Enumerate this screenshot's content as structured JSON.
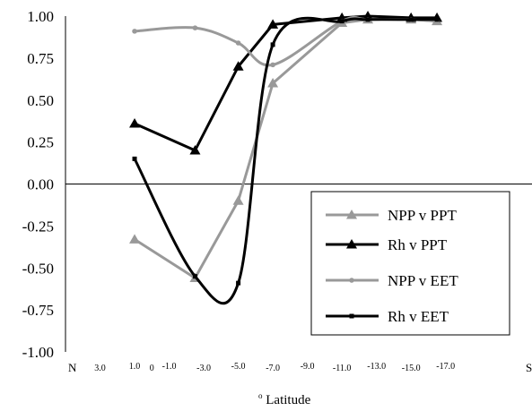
{
  "chart_data": {
    "type": "line",
    "title": "",
    "ylabel": "",
    "xlabel": {
      "superscript": "o",
      "text": " Latitude"
    },
    "ylim": [
      -1.0,
      1.0
    ],
    "y_ticks": [
      "1.00",
      "0.75",
      "0.50",
      "0.25",
      "0.00",
      "-0.25",
      "-0.50",
      "-0.75",
      "-1.00"
    ],
    "x_ticks": [
      "3.0",
      "1.0",
      "0",
      "-1.0",
      "-3.0",
      "-5.0",
      "-7.0",
      "-9.0",
      "-11.0",
      "-13.0",
      "-15.0",
      "-17.0"
    ],
    "x_end_labels": {
      "left": "N",
      "right": "S"
    },
    "grid": false,
    "legend_position": "lower-right",
    "series": [
      {
        "name": "NPP v PPT",
        "color": "#999999",
        "marker": "triangle",
        "smooth": false,
        "points": [
          [
            1.0,
            -0.33
          ],
          [
            -2.5,
            -0.56
          ],
          [
            -5.0,
            -0.1
          ],
          [
            -7.0,
            0.6
          ],
          [
            -11.0,
            0.96
          ],
          [
            -12.5,
            0.98
          ],
          [
            -15.0,
            0.98
          ],
          [
            -16.5,
            0.97
          ]
        ]
      },
      {
        "name": "Rh v PPT",
        "color": "#000000",
        "marker": "triangle",
        "smooth": false,
        "points": [
          [
            1.0,
            0.36
          ],
          [
            -2.5,
            0.2
          ],
          [
            -5.0,
            0.7
          ],
          [
            -7.0,
            0.95
          ],
          [
            -11.0,
            0.99
          ],
          [
            -12.5,
            1.0
          ],
          [
            -15.0,
            0.99
          ],
          [
            -16.5,
            0.99
          ]
        ]
      },
      {
        "name": "NPP v EET",
        "color": "#999999",
        "marker": "dot",
        "smooth": true,
        "points": [
          [
            1.0,
            0.91
          ],
          [
            -2.5,
            0.93
          ],
          [
            -5.0,
            0.84
          ],
          [
            -7.0,
            0.71
          ],
          [
            -11.0,
            0.97
          ],
          [
            -12.5,
            0.98
          ],
          [
            -15.0,
            0.98
          ],
          [
            -16.5,
            0.97
          ]
        ]
      },
      {
        "name": "Rh v EET",
        "color": "#000000",
        "marker": "square",
        "smooth": true,
        "points": [
          [
            1.0,
            0.15
          ],
          [
            -2.5,
            -0.55
          ],
          [
            -5.0,
            -0.59
          ],
          [
            -7.0,
            0.83
          ],
          [
            -11.0,
            0.97
          ],
          [
            -12.5,
            0.98
          ],
          [
            -15.0,
            0.98
          ],
          [
            -16.5,
            0.98
          ]
        ]
      }
    ]
  }
}
